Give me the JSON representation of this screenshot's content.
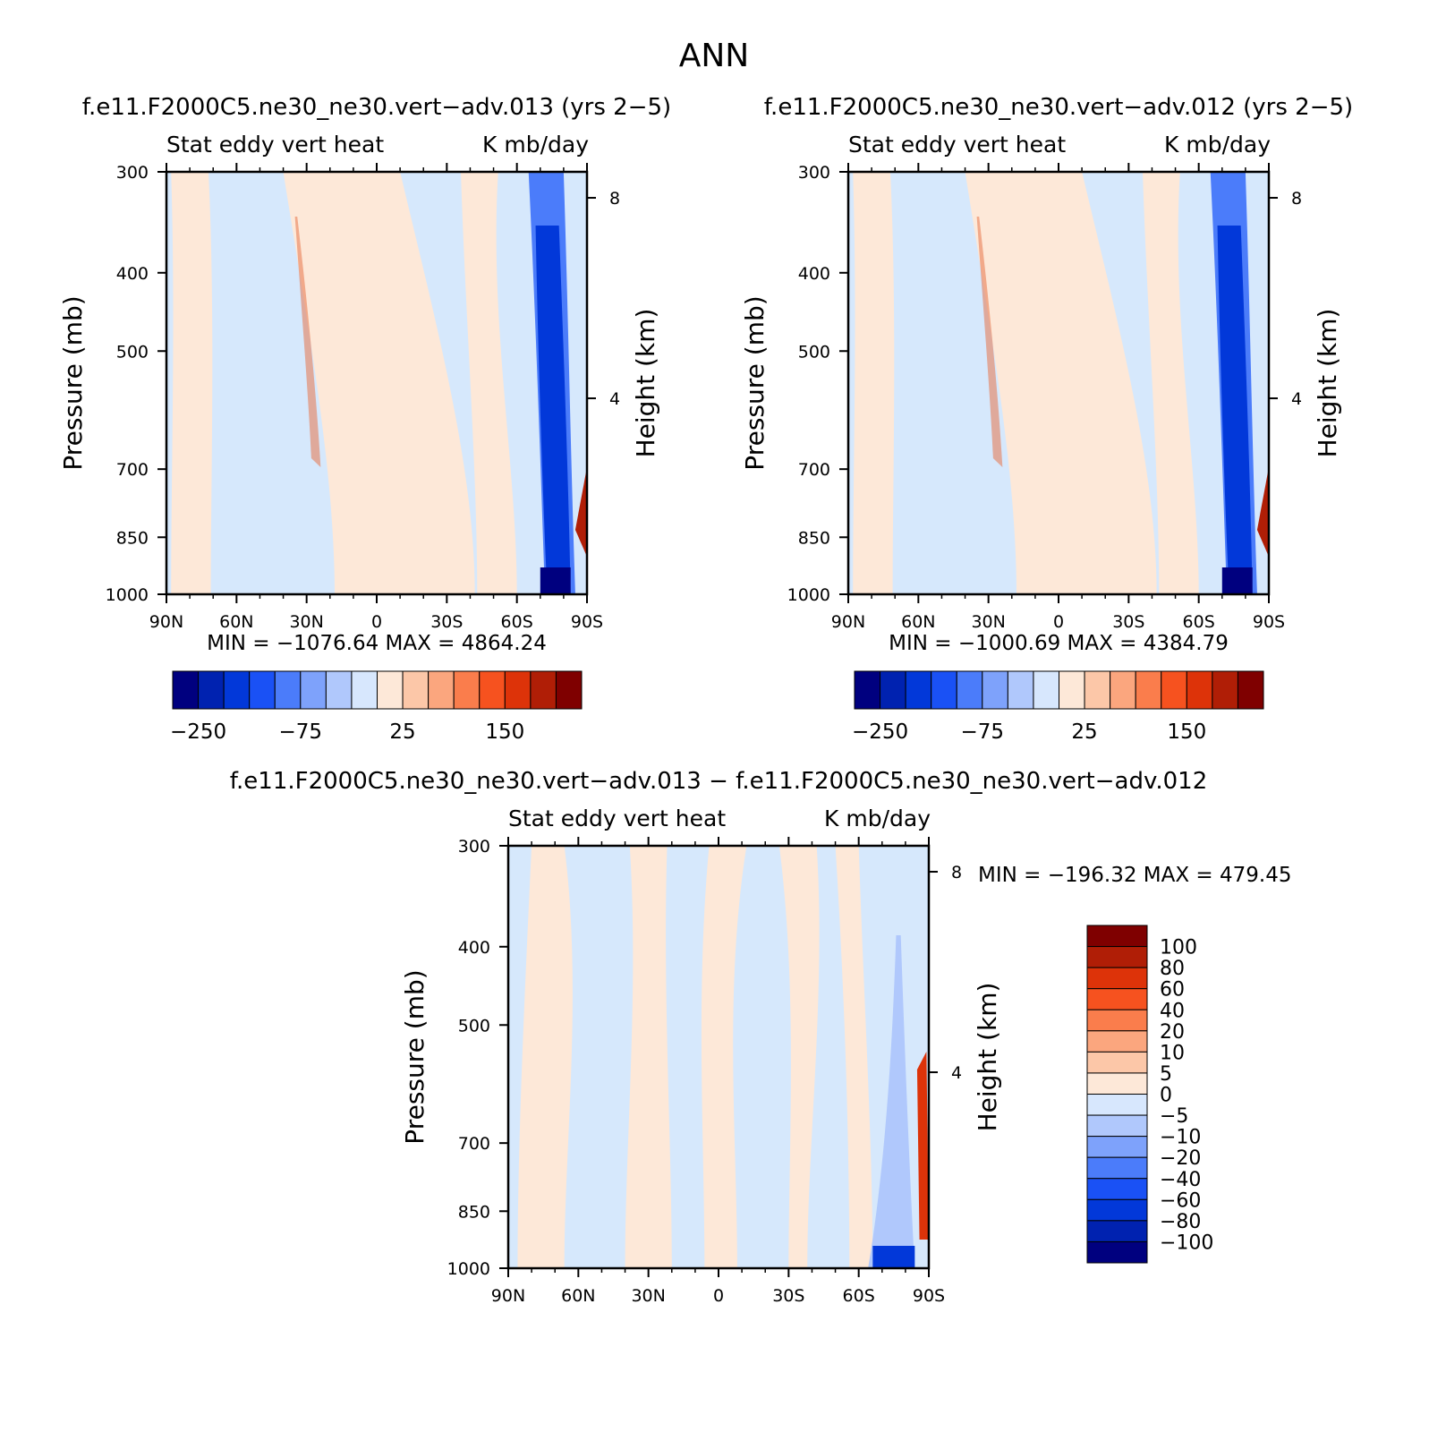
{
  "figure_title": "ANN",
  "chart_data": [
    {
      "type": "heatmap",
      "title": "f.e11.F2000C5.ne30_ne30.vert−adv.013 (yrs 2−5)",
      "subtitle_left": "Stat eddy vert heat",
      "subtitle_right": "K mb/day",
      "ylabel": "Pressure (mb)",
      "ylabel_right": "Height (km)",
      "x_ticks": [
        "90N",
        "60N",
        "30N",
        "0",
        "30S",
        "60S",
        "90S"
      ],
      "x_values": [
        90,
        60,
        30,
        0,
        -30,
        -60,
        -90
      ],
      "y_ticks": [
        300,
        400,
        500,
        700,
        850,
        1000
      ],
      "y_ticks_right": [
        8,
        4
      ],
      "ylim": [
        1000,
        300
      ],
      "y_scale": "log",
      "xlim": [
        90,
        -90
      ],
      "stats": "MIN = −1076.64   MAX = 4864.24",
      "colorbar_labels": [
        "−250",
        "−75",
        "25",
        "150"
      ],
      "colorbar_levels": 16
    },
    {
      "type": "heatmap",
      "title": "f.e11.F2000C5.ne30_ne30.vert−adv.012 (yrs 2−5)",
      "subtitle_left": "Stat eddy vert heat",
      "subtitle_right": "K mb/day",
      "ylabel": "Pressure (mb)",
      "ylabel_right": "Height (km)",
      "x_ticks": [
        "90N",
        "60N",
        "30N",
        "0",
        "30S",
        "60S",
        "90S"
      ],
      "x_values": [
        90,
        60,
        30,
        0,
        -30,
        -60,
        -90
      ],
      "y_ticks": [
        300,
        400,
        500,
        700,
        850,
        1000
      ],
      "y_ticks_right": [
        8,
        4
      ],
      "ylim": [
        1000,
        300
      ],
      "y_scale": "log",
      "xlim": [
        90,
        -90
      ],
      "stats": "MIN = −1000.69   MAX = 4384.79",
      "colorbar_labels": [
        "−250",
        "−75",
        "25",
        "150"
      ],
      "colorbar_levels": 16
    },
    {
      "type": "heatmap",
      "title": "f.e11.F2000C5.ne30_ne30.vert−adv.013 − f.e11.F2000C5.ne30_ne30.vert−adv.012",
      "subtitle_left": "Stat eddy vert heat",
      "subtitle_right": "K mb/day",
      "ylabel": "Pressure (mb)",
      "ylabel_right": "Height (km)",
      "x_ticks": [
        "90N",
        "60N",
        "30N",
        "0",
        "30S",
        "60S",
        "90S"
      ],
      "x_values": [
        90,
        60,
        30,
        0,
        -30,
        -60,
        -90
      ],
      "y_ticks": [
        300,
        400,
        500,
        700,
        850,
        1000
      ],
      "y_ticks_right": [
        8,
        4
      ],
      "ylim": [
        1000,
        300
      ],
      "y_scale": "log",
      "xlim": [
        90,
        -90
      ],
      "stats": "MIN = −196.32   MAX = 479.45",
      "colorbar_labels": [
        "100",
        "80",
        "60",
        "40",
        "20",
        "10",
        "5",
        "0",
        "−5",
        "−10",
        "−20",
        "−40",
        "−60",
        "−80",
        "−100"
      ],
      "colorbar_levels": 16
    }
  ],
  "colors": {
    "palette": [
      "#00007f",
      "#0022b0",
      "#0238d9",
      "#1a51f5",
      "#4b7cfa",
      "#7ea2fb",
      "#b0c8fc",
      "#d7e7fd",
      "#fde8d8",
      "#fcc7a8",
      "#fba67e",
      "#fa7d4c",
      "#f6521f",
      "#dd3309",
      "#b01e06",
      "#7f0000"
    ],
    "plot_background": "#d6e8fc",
    "warm_band": "#fde8d8",
    "accent_red": "#e8744a"
  }
}
